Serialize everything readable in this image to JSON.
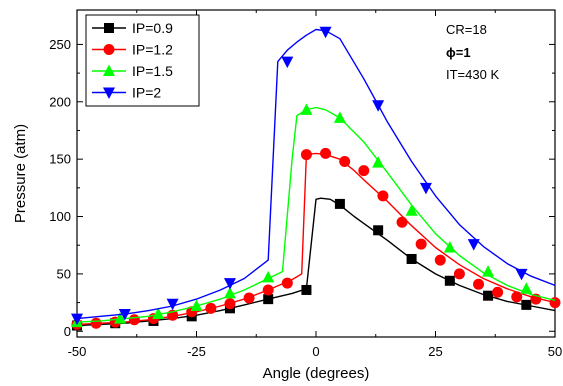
{
  "chart_data": {
    "type": "line",
    "xlabel": "Angle (degrees)",
    "ylabel": "Pressure (atm)",
    "xlim": [
      -50,
      50
    ],
    "ylim": [
      -5,
      280
    ],
    "xticks": [
      -50,
      -25,
      0,
      25,
      50
    ],
    "yticks": [
      0,
      50,
      100,
      150,
      200,
      250
    ],
    "grid": false,
    "legend_position": "top-left",
    "annotations": [
      "CR=18",
      "ϕ=1",
      "IT=430 K"
    ],
    "series": [
      {
        "name": "IP=0.9",
        "color": "#000000",
        "marker": "square",
        "x": [
          -50,
          -45,
          -40,
          -35,
          -30,
          -25,
          -20,
          -15,
          -10,
          -5,
          -2,
          0,
          1,
          3,
          5,
          8,
          10,
          15,
          20,
          25,
          30,
          35,
          40,
          45,
          50
        ],
        "y": [
          5,
          6,
          7,
          9,
          11,
          14,
          18,
          23,
          28,
          33,
          37,
          115,
          116,
          115,
          110,
          100,
          94,
          79,
          63,
          50,
          40,
          32,
          26,
          22,
          18
        ],
        "marker_x": [
          -50,
          -42,
          -34,
          -26,
          -18,
          -10,
          -2,
          5,
          13,
          20,
          28,
          36,
          44
        ],
        "marker_y": [
          5,
          7,
          9,
          13,
          20,
          28,
          36,
          111,
          88,
          63,
          44,
          31,
          23
        ]
      },
      {
        "name": "IP=1.2",
        "color": "#ff0000",
        "marker": "circle",
        "x": [
          -50,
          -45,
          -40,
          -35,
          -30,
          -25,
          -20,
          -15,
          -10,
          -5,
          -3,
          -2,
          0,
          2,
          5,
          8,
          10,
          15,
          20,
          25,
          30,
          35,
          40,
          45,
          50
        ],
        "y": [
          6,
          7,
          8,
          10,
          13,
          17,
          22,
          28,
          36,
          45,
          50,
          154,
          155,
          154,
          150,
          140,
          132,
          113,
          92,
          73,
          58,
          46,
          37,
          30,
          25
        ],
        "marker_x": [
          -50,
          -46,
          -42,
          -38,
          -34,
          -30,
          -26,
          -22,
          -18,
          -14,
          -10,
          -6,
          -2,
          2,
          6,
          10,
          14,
          18,
          22,
          26,
          30,
          34,
          38,
          42,
          46,
          50
        ],
        "marker_y": [
          6,
          7,
          8,
          10,
          11,
          14,
          17,
          20,
          24,
          29,
          36,
          42,
          154,
          155,
          148,
          140,
          118,
          95,
          76,
          62,
          50,
          41,
          34,
          30,
          28,
          25
        ]
      },
      {
        "name": "IP=1.5",
        "color": "#00ff00",
        "marker": "triangle-up",
        "x": [
          -50,
          -45,
          -40,
          -35,
          -30,
          -25,
          -20,
          -15,
          -10,
          -7,
          -5,
          -4,
          -2,
          0,
          2,
          5,
          10,
          15,
          20,
          25,
          30,
          35,
          40,
          45,
          50
        ],
        "y": [
          8,
          9,
          11,
          13,
          17,
          22,
          28,
          36,
          46,
          52,
          150,
          188,
          193,
          195,
          193,
          186,
          165,
          138,
          110,
          85,
          66,
          51,
          40,
          32,
          27
        ],
        "marker_x": [
          -50,
          -41,
          -33,
          -25,
          -18,
          -10,
          -2,
          5,
          13,
          20,
          28,
          36,
          44
        ],
        "marker_y": [
          8,
          11,
          15,
          22,
          33,
          47,
          193,
          186,
          147,
          105,
          73,
          52,
          37
        ]
      },
      {
        "name": "IP=2",
        "color": "#0000ff",
        "marker": "triangle-down",
        "x": [
          -50,
          -45,
          -40,
          -35,
          -30,
          -25,
          -20,
          -15,
          -10,
          -8,
          -6,
          -4,
          -2,
          0,
          2,
          5,
          10,
          15,
          20,
          25,
          30,
          35,
          40,
          45,
          50
        ],
        "y": [
          11,
          13,
          15,
          18,
          22,
          28,
          36,
          46,
          62,
          235,
          245,
          252,
          258,
          263,
          262,
          255,
          220,
          182,
          148,
          118,
          93,
          74,
          59,
          48,
          40
        ],
        "marker_x": [
          -50,
          -40,
          -30,
          -18,
          -6,
          2,
          13,
          23,
          33,
          43
        ],
        "marker_y": [
          11,
          15,
          24,
          42,
          235,
          261,
          197,
          125,
          76,
          50
        ]
      }
    ]
  }
}
